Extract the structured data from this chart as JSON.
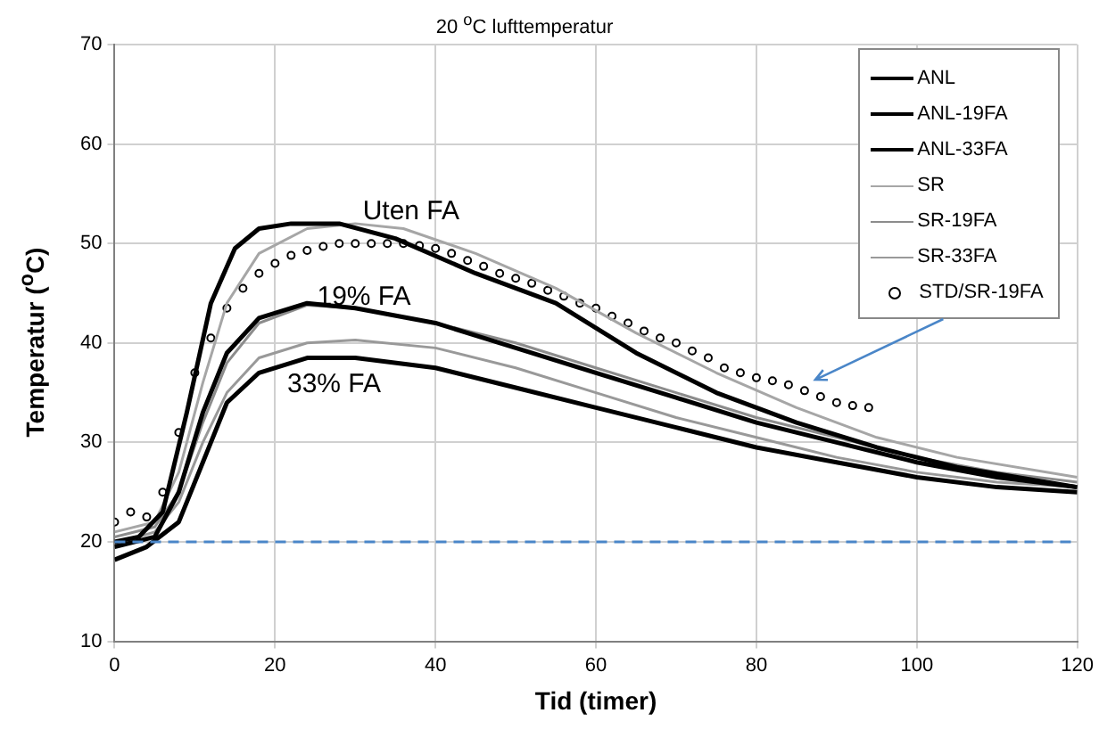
{
  "chart_data": {
    "type": "line",
    "title": "20 $^{o}$C lufttemperatur",
    "xlabel": "Tid (timer)",
    "ylabel": "Temperatur ($^{o}$C)",
    "xlim": [
      0,
      120
    ],
    "xticks": [
      0,
      20,
      40,
      60,
      80,
      100,
      120
    ],
    "ylim": [
      10,
      70
    ],
    "yticks": [
      10,
      20,
      30,
      40,
      50,
      60,
      70
    ],
    "grid": true,
    "legend": "top right",
    "marker": "none",
    "line_style": "solid",
    "series": [
      {
        "name": "ANL",
        "color": "#000000",
        "x": [
          0,
          3,
          6,
          9,
          12,
          15,
          18,
          22,
          28,
          35,
          45,
          55,
          65,
          75,
          85,
          95,
          105,
          120
        ],
        "values": [
          20,
          20.5,
          23,
          33,
          44,
          49.5,
          51.5,
          52,
          52,
          50.5,
          47,
          44,
          39,
          35,
          32,
          29.5,
          27.5,
          25.5
        ]
      },
      {
        "name": "ANL-19FA",
        "color": "#000000",
        "x": [
          0,
          5,
          8,
          11,
          14,
          18,
          24,
          30,
          40,
          50,
          60,
          70,
          80,
          90,
          100,
          110,
          120
        ],
        "values": [
          19.5,
          20.5,
          25,
          33,
          39,
          42.5,
          44,
          43.5,
          42,
          39.5,
          37,
          34.5,
          32,
          30,
          28,
          26.5,
          25.5
        ]
      },
      {
        "name": "ANL-33FA",
        "color": "#000000",
        "x": [
          0,
          4,
          8,
          11,
          14,
          18,
          24,
          30,
          40,
          50,
          60,
          70,
          80,
          90,
          100,
          110,
          120
        ],
        "values": [
          18.2,
          19.5,
          22,
          28,
          34,
          37,
          38.5,
          38.5,
          37.5,
          35.5,
          33.5,
          31.5,
          29.5,
          28,
          26.5,
          25.5,
          25
        ]
      },
      {
        "name": "SR",
        "color": "#a6a6a6",
        "x": [
          0,
          5,
          8,
          11,
          14,
          18,
          24,
          30,
          36,
          45,
          55,
          65,
          75,
          85,
          95,
          105,
          120
        ],
        "values": [
          21,
          22,
          27,
          36,
          44,
          49,
          51.5,
          52,
          51.5,
          49,
          45.5,
          41,
          37,
          33.5,
          30.5,
          28.5,
          26.5
        ]
      },
      {
        "name": "SR-19FA",
        "color": "#8c8c8c",
        "x": [
          0,
          5,
          8,
          11,
          14,
          18,
          24,
          30,
          40,
          50,
          60,
          70,
          80,
          90,
          100,
          110,
          120
        ],
        "values": [
          20.5,
          21.5,
          25,
          32,
          38,
          42,
          43.8,
          43.5,
          42,
          40,
          37.5,
          35,
          32.5,
          30.5,
          28.5,
          27,
          26
        ]
      },
      {
        "name": "SR-33FA",
        "color": "#999999",
        "x": [
          0,
          5,
          8,
          11,
          14,
          18,
          24,
          30,
          40,
          50,
          60,
          70,
          80,
          90,
          100,
          110,
          120
        ],
        "values": [
          19.8,
          21,
          24,
          30,
          35,
          38.5,
          40,
          40.3,
          39.5,
          37.5,
          35,
          32.5,
          30.5,
          28.5,
          27,
          26,
          25.5
        ]
      },
      {
        "name": "STD/SR-19FA",
        "type": "scatter",
        "color": "#000000",
        "marker": "circle",
        "x": [
          0,
          2,
          4,
          6,
          8,
          10,
          12,
          14,
          16,
          18,
          20,
          22,
          24,
          26,
          28,
          30,
          32,
          34,
          36,
          38,
          40,
          42,
          44,
          46,
          48,
          50,
          52,
          54,
          56,
          58,
          60,
          62,
          64,
          66,
          68,
          70,
          72,
          74,
          76,
          78,
          80,
          82,
          84,
          86,
          88,
          90,
          92,
          94
        ],
        "values": [
          22,
          23,
          22.5,
          25,
          31,
          37,
          40.5,
          43.5,
          45.5,
          47,
          48,
          48.8,
          49.3,
          49.7,
          50,
          50,
          50,
          50,
          50,
          49.8,
          49.5,
          49,
          48.3,
          47.7,
          47,
          46.5,
          46,
          45.3,
          44.7,
          44,
          43.5,
          42.7,
          42,
          41.2,
          40.5,
          40,
          39.2,
          38.5,
          37.5,
          37,
          36.5,
          36.2,
          35.8,
          35.2,
          34.6,
          34,
          33.7,
          33.5
        ]
      }
    ],
    "ref_lines": [
      {
        "axis": "y",
        "value": 20,
        "color": "#4a86c8",
        "line_style": "dashed"
      }
    ],
    "annotations": [
      "Uten FA",
      "19% FA",
      "33% FA"
    ]
  }
}
